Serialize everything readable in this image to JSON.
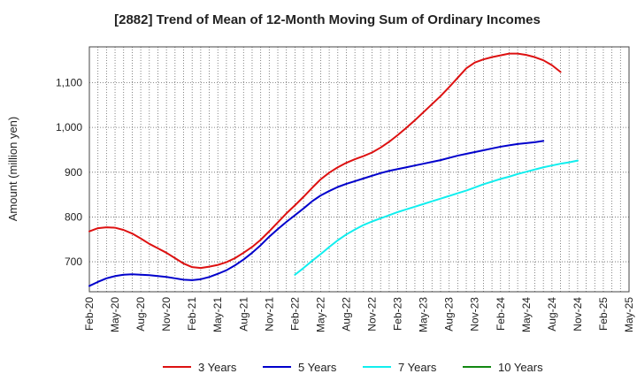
{
  "chart_data": {
    "type": "line",
    "title": "[2882]  Trend of Mean of 12-Month Moving Sum of Ordinary Incomes",
    "xlabel": "",
    "ylabel": "Amount (million yen)",
    "ylim": [
      633,
      1180
    ],
    "yticks": [
      700,
      800,
      900,
      1000,
      1100
    ],
    "ytick_labels": [
      "700",
      "800",
      "900",
      "1,000",
      "1,100"
    ],
    "xrange": [
      0,
      63
    ],
    "xticks": [
      0,
      3,
      6,
      9,
      12,
      15,
      18,
      21,
      24,
      27,
      30,
      33,
      36,
      39,
      42,
      45,
      48,
      51,
      54,
      57,
      60,
      63
    ],
    "xtick_labels": [
      "Feb-20",
      "May-20",
      "Aug-20",
      "Nov-20",
      "Feb-21",
      "May-21",
      "Aug-21",
      "Nov-21",
      "Feb-22",
      "May-22",
      "Aug-22",
      "Nov-22",
      "Feb-23",
      "May-23",
      "Aug-23",
      "Nov-23",
      "Feb-24",
      "May-24",
      "Aug-24",
      "Nov-24",
      "Feb-25",
      "May-25"
    ],
    "grid": true,
    "legend_position": "bottom",
    "series": [
      {
        "name": "3 Years",
        "color": "#dd1111",
        "start": 0,
        "values": [
          768,
          775,
          777,
          776,
          771,
          763,
          752,
          740,
          730,
          720,
          708,
          696,
          688,
          686,
          689,
          693,
          699,
          708,
          720,
          733,
          749,
          768,
          788,
          808,
          826,
          845,
          865,
          884,
          899,
          911,
          921,
          929,
          936,
          944,
          955,
          968,
          983,
          999,
          1016,
          1034,
          1052,
          1070,
          1090,
          1111,
          1132,
          1145,
          1152,
          1157,
          1161,
          1165,
          1165,
          1162,
          1157,
          1150,
          1139,
          1124
        ]
      },
      {
        "name": "5 Years",
        "color": "#0000cc",
        "start": 0,
        "values": [
          646,
          655,
          663,
          668,
          671,
          672,
          671,
          670,
          668,
          666,
          663,
          660,
          659,
          661,
          666,
          673,
          681,
          692,
          705,
          720,
          737,
          756,
          773,
          789,
          804,
          819,
          835,
          848,
          858,
          867,
          874,
          880,
          886,
          892,
          898,
          903,
          907,
          911,
          915,
          919,
          923,
          927,
          932,
          937,
          941,
          945,
          949,
          953,
          957,
          960,
          963,
          965,
          967,
          970
        ]
      },
      {
        "name": "7 Years",
        "color": "#11eeee",
        "start": 24,
        "values": [
          671,
          686,
          702,
          717,
          733,
          748,
          761,
          772,
          782,
          790,
          797,
          804,
          811,
          817,
          823,
          829,
          835,
          841,
          847,
          853,
          859,
          866,
          873,
          879,
          885,
          890,
          896,
          901,
          906,
          911,
          915,
          919,
          922,
          926
        ]
      },
      {
        "name": "10 Years",
        "color": "#118811",
        "start": 0,
        "values": []
      }
    ]
  }
}
